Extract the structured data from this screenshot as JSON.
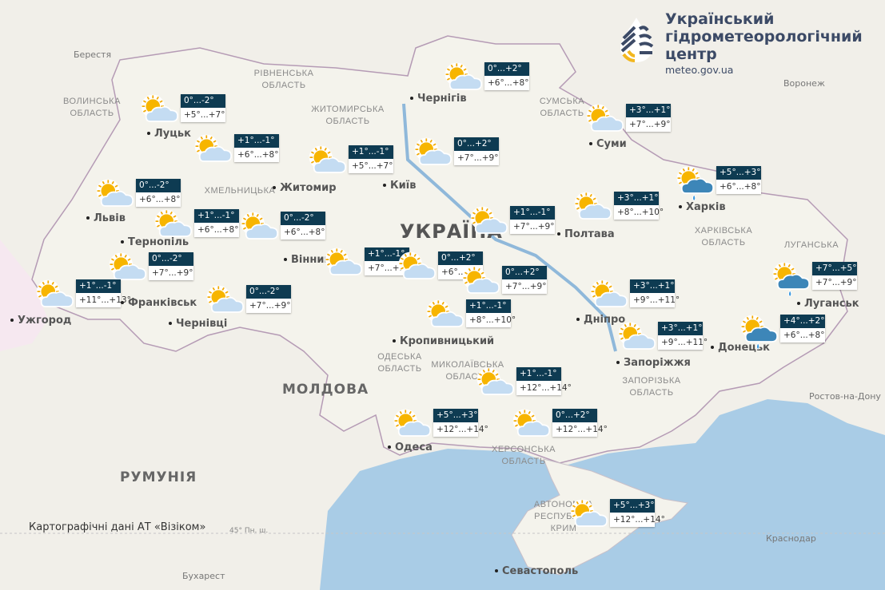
{
  "logo": {
    "line1": "Український",
    "line2": "гідрометеорологічний",
    "line3": "центр",
    "url": "meteo.gov.ua"
  },
  "credit": "Картографічні дані АТ «Візіком»",
  "latitude_label": "45° Пн. ш.",
  "colors": {
    "land": "#f1efe9",
    "ukraine": "#f6f4ee",
    "sea": "#a9cce6",
    "box_header": "#0e3b52",
    "border": "#b59bb5"
  },
  "countries": [
    "УКРАЇНА",
    "МОЛДОВА",
    "РУМУНІЯ"
  ],
  "foreign_cities": [
    "Берестя",
    "Воронеж",
    "Ростов-на-Дону",
    "Краснодар",
    "Бухарест"
  ],
  "cities": [
    "Луцьк",
    "Житомир",
    "Київ",
    "Чернігів",
    "Суми",
    "Полтава",
    "Харків",
    "Львів",
    "Тернопіль",
    "Вінниця",
    "Франківськ",
    "Ужгород",
    "Чернівці",
    "Дніпро",
    "Запоріжжя",
    "Донецьк",
    "Луганськ",
    "Одеса",
    "Севастополь",
    "Кропивницький"
  ],
  "regions": [
    "ВОЛИНСЬКА ОБЛАСТЬ",
    "РІВНЕНСЬКА ОБЛАСТЬ",
    "ЖИТОМИРСЬКА ОБЛАСТЬ",
    "СУМСЬКА ОБЛАСТЬ",
    "ХАРКІВСЬКА ОБЛАСТЬ",
    "ЛУГАНСЬКА",
    "МИКОЛАЇВСЬКА ОБЛАСТЬ",
    "ОДЕСЬКА ОБЛАСТЬ",
    "ЗАПОРІЗЬКА ОБЛАСТЬ",
    "ХЕРСОНСЬКА ОБЛАСТЬ",
    "АВТОНОМНА РЕСПУБЛІКА КРИМ",
    "ХМЕЛЬНИЦЬКА"
  ],
  "forecasts": [
    {
      "region": "Волинська",
      "icon": "partly-cloudy-icon",
      "night": "0°...-2°",
      "day": "+5°...+7°"
    },
    {
      "region": "Рівненська",
      "icon": "partly-cloudy-icon",
      "night": "+1°...-1°",
      "day": "+6°...+8°"
    },
    {
      "region": "Житомирська",
      "icon": "partly-cloudy-icon",
      "night": "+1°...-1°",
      "day": "+5°...+7°"
    },
    {
      "region": "Київська",
      "icon": "partly-cloudy-icon",
      "night": "0°...+2°",
      "day": "+7°...+9°"
    },
    {
      "region": "Чернігівська",
      "icon": "partly-cloudy-icon",
      "night": "0°...+2°",
      "day": "+6°...+8°"
    },
    {
      "region": "Сумська",
      "icon": "partly-cloudy-icon",
      "night": "+3°...+1°",
      "day": "+7°...+9°"
    },
    {
      "region": "Харківська",
      "icon": "rain-cloud-icon",
      "night": "+5°...+3°",
      "day": "+6°...+8°"
    },
    {
      "region": "Полтавська",
      "icon": "partly-cloudy-icon",
      "night": "+3°...+1°",
      "day": "+8°...+10°"
    },
    {
      "region": "Черкаська",
      "icon": "partly-cloudy-icon",
      "night": "+1°...-1°",
      "day": "+7°...+9°"
    },
    {
      "region": "Львівська",
      "icon": "partly-cloudy-icon",
      "night": "0°...-2°",
      "day": "+6°...+8°"
    },
    {
      "region": "Тернопільська",
      "icon": "partly-cloudy-icon",
      "night": "+1°...-1°",
      "day": "+6°...+8°"
    },
    {
      "region": "Хмельницька",
      "icon": "partly-cloudy-icon",
      "night": "0°...-2°",
      "day": "+6°...+8°"
    },
    {
      "region": "Івано-Франківська",
      "icon": "partly-cloudy-icon",
      "night": "0°...-2°",
      "day": "+7°...+9°"
    },
    {
      "region": "Закарпатська",
      "icon": "partly-cloudy-icon",
      "night": "+1°...-1°",
      "day": "+11°...+13°"
    },
    {
      "region": "Чернівецька",
      "icon": "partly-cloudy-icon",
      "night": "0°...-2°",
      "day": "+7°...+9°"
    },
    {
      "region": "Вінницька",
      "icon": "partly-cloudy-icon",
      "night": "+1°...-1°",
      "day": "+7°...+9°"
    },
    {
      "region": "Кіровоградська",
      "icon": "partly-cloudy-icon",
      "night": "0°...+2°",
      "day": "+6°...+8°"
    },
    {
      "region": "Кіровоградська-2",
      "icon": "partly-cloudy-icon",
      "night": "0°...+2°",
      "day": "+7°...+9°"
    },
    {
      "region": "Миколаївська-північ",
      "icon": "partly-cloudy-icon",
      "night": "+1°...-1°",
      "day": "+8°...+10°"
    },
    {
      "region": "Дніпропетровська",
      "icon": "partly-cloudy-icon",
      "night": "+3°...+1°",
      "day": "+9°...+11°"
    },
    {
      "region": "Запорізька",
      "icon": "partly-cloudy-icon",
      "night": "+3°...+1°",
      "day": "+9°...+11°"
    },
    {
      "region": "Луганська",
      "icon": "rain-cloud-icon",
      "night": "+7°...+5°",
      "day": "+7°...+9°"
    },
    {
      "region": "Донецька",
      "icon": "rain-cloud-icon",
      "night": "+4°...+2°",
      "day": "+6°...+8°"
    },
    {
      "region": "Миколаївська",
      "icon": "partly-cloudy-icon",
      "night": "+1°...-1°",
      "day": "+12°...+14°"
    },
    {
      "region": "Одеська",
      "icon": "partly-cloudy-icon",
      "night": "+5°...+3°",
      "day": "+12°...+14°"
    },
    {
      "region": "Херсонська",
      "icon": "partly-cloudy-icon",
      "night": "0°...+2°",
      "day": "+12°...+14°"
    },
    {
      "region": "Крим",
      "icon": "partly-cloudy-icon",
      "night": "+5°...+3°",
      "day": "+12°...+14°"
    }
  ]
}
